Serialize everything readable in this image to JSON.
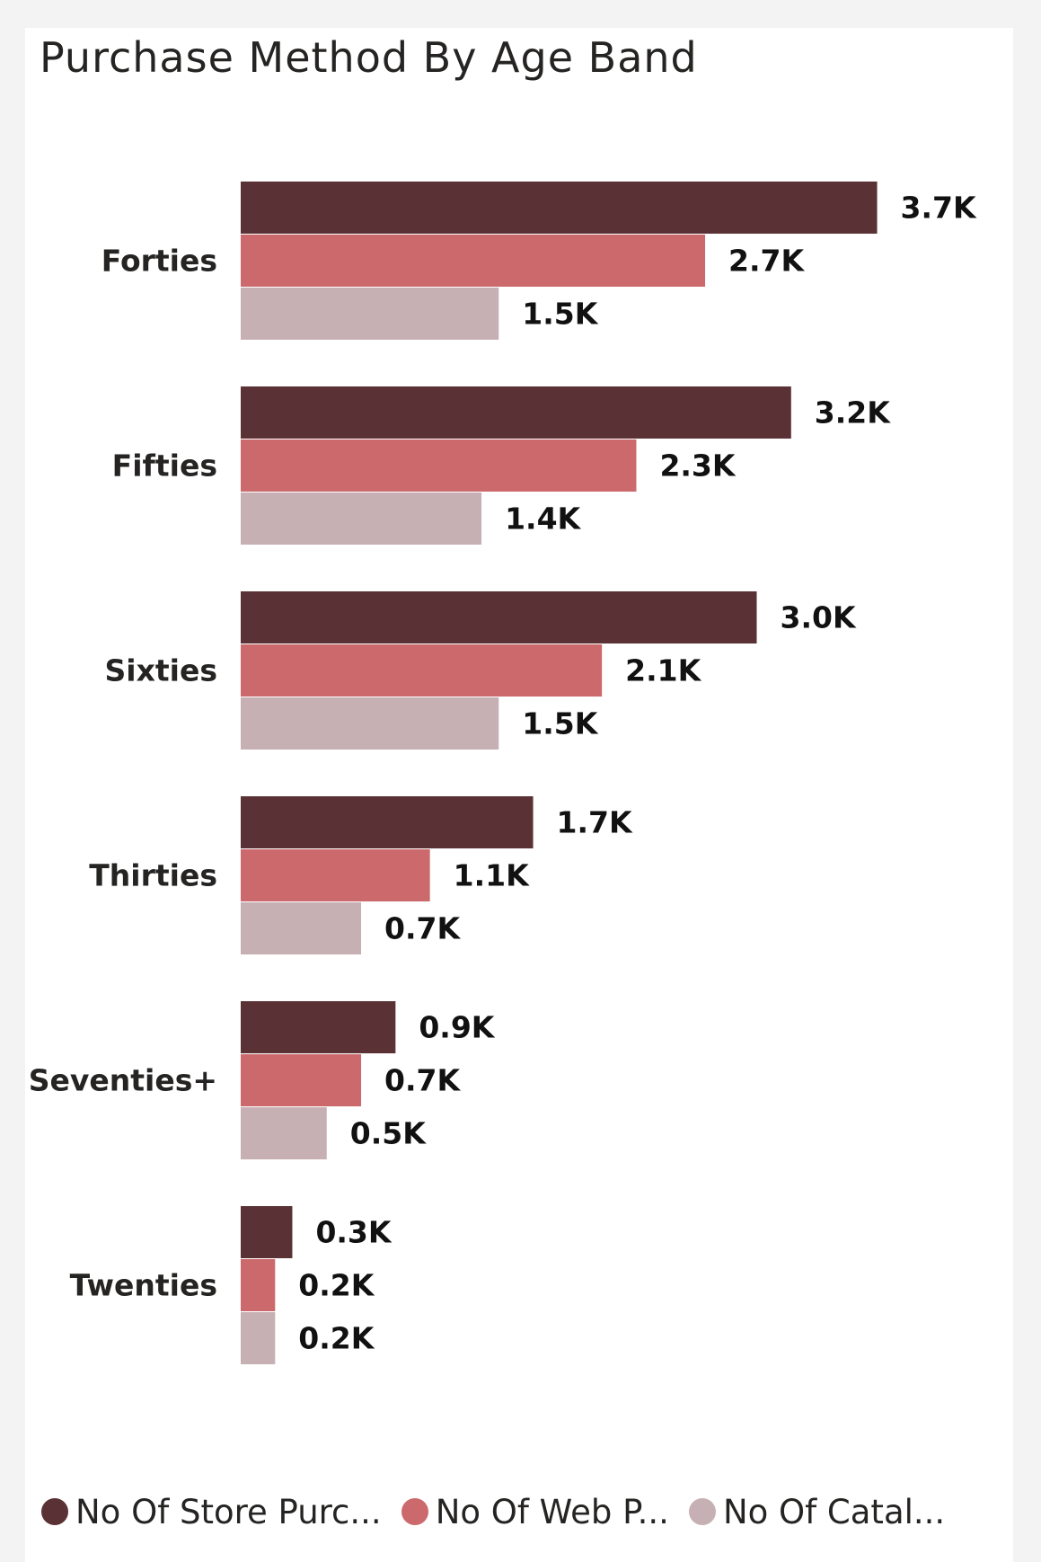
{
  "chart_data": {
    "type": "bar",
    "orientation": "horizontal",
    "title": "Purchase Method By Age Band",
    "categories": [
      "Forties",
      "Fifties",
      "Sixties",
      "Thirties",
      "Seventies+",
      "Twenties"
    ],
    "series": [
      {
        "name": "No Of Store Purc...",
        "color": "#5a3134",
        "values": [
          3700,
          3200,
          3000,
          1700,
          900,
          300
        ],
        "labels": [
          "3.7K",
          "3.2K",
          "3.0K",
          "1.7K",
          "0.9K",
          "0.3K"
        ]
      },
      {
        "name": "No Of Web P...",
        "color": "#cc696c",
        "values": [
          2700,
          2300,
          2100,
          1100,
          700,
          200
        ],
        "labels": [
          "2.7K",
          "2.3K",
          "2.1K",
          "1.1K",
          "0.7K",
          "0.2K"
        ]
      },
      {
        "name": "No Of Catal...",
        "color": "#c7b0b3",
        "values": [
          1500,
          1400,
          1500,
          700,
          500,
          200
        ],
        "labels": [
          "1.5K",
          "1.4K",
          "1.5K",
          "0.7K",
          "0.5K",
          "0.2K"
        ]
      }
    ],
    "xlim": [
      0,
      3800
    ],
    "grid": false,
    "legend_position": "bottom-left",
    "data_labels": true
  }
}
